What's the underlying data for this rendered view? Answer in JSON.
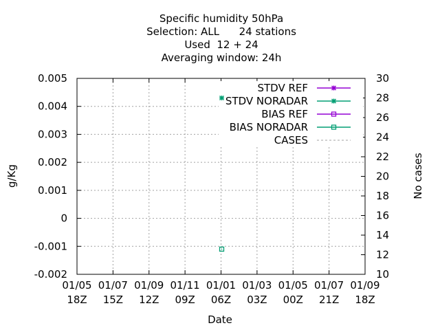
{
  "chart_data": {
    "type": "scatter",
    "title_lines": [
      "Specific humidity 50hPa",
      "Selection: ALL      24 stations",
      "Used  12 + 24",
      "Averaging window: 24h"
    ],
    "xlabel": "Date",
    "ylabel": "g/Kg",
    "y2label": "No cases",
    "x_ticks": [
      [
        "01/05",
        "18Z"
      ],
      [
        "01/07",
        "15Z"
      ],
      [
        "01/09",
        "12Z"
      ],
      [
        "01/11",
        "09Z"
      ],
      [
        "01/01",
        "06Z"
      ],
      [
        "01/03",
        "03Z"
      ],
      [
        "01/05",
        "00Z"
      ],
      [
        "01/07",
        "21Z"
      ],
      [
        "01/09",
        "18Z"
      ]
    ],
    "ylim": [
      -0.002,
      0.005
    ],
    "y_ticks": [
      "0.005",
      "0.004",
      "0.003",
      "0.002",
      "0.001",
      "0",
      "-0.001",
      "-0.002"
    ],
    "y2lim": [
      10,
      30
    ],
    "y2_ticks": [
      "30",
      "28",
      "26",
      "24",
      "22",
      "20",
      "18",
      "16",
      "14",
      "12",
      "10"
    ],
    "grid": true,
    "legend_position": "top-right",
    "series": [
      {
        "name": "STDV REF",
        "color": "#9400d3",
        "marker": "star",
        "line": "solid",
        "x_tick_index": 4,
        "values": []
      },
      {
        "name": "STDV NORADAR",
        "color": "#009e73",
        "marker": "star",
        "line": "solid",
        "x_tick_index": 4,
        "values": [
          0.0043
        ]
      },
      {
        "name": "BIAS REF",
        "color": "#9400d3",
        "marker": "square",
        "line": "solid",
        "x_tick_index": 4,
        "values": []
      },
      {
        "name": "BIAS NORADAR",
        "color": "#009e73",
        "marker": "square",
        "line": "solid",
        "x_tick_index": 4,
        "values": [
          -0.0011
        ]
      },
      {
        "name": "CASES",
        "color": "#a0a0a0",
        "marker": "none",
        "line": "dashed",
        "x_tick_index": 4,
        "values": []
      }
    ]
  }
}
